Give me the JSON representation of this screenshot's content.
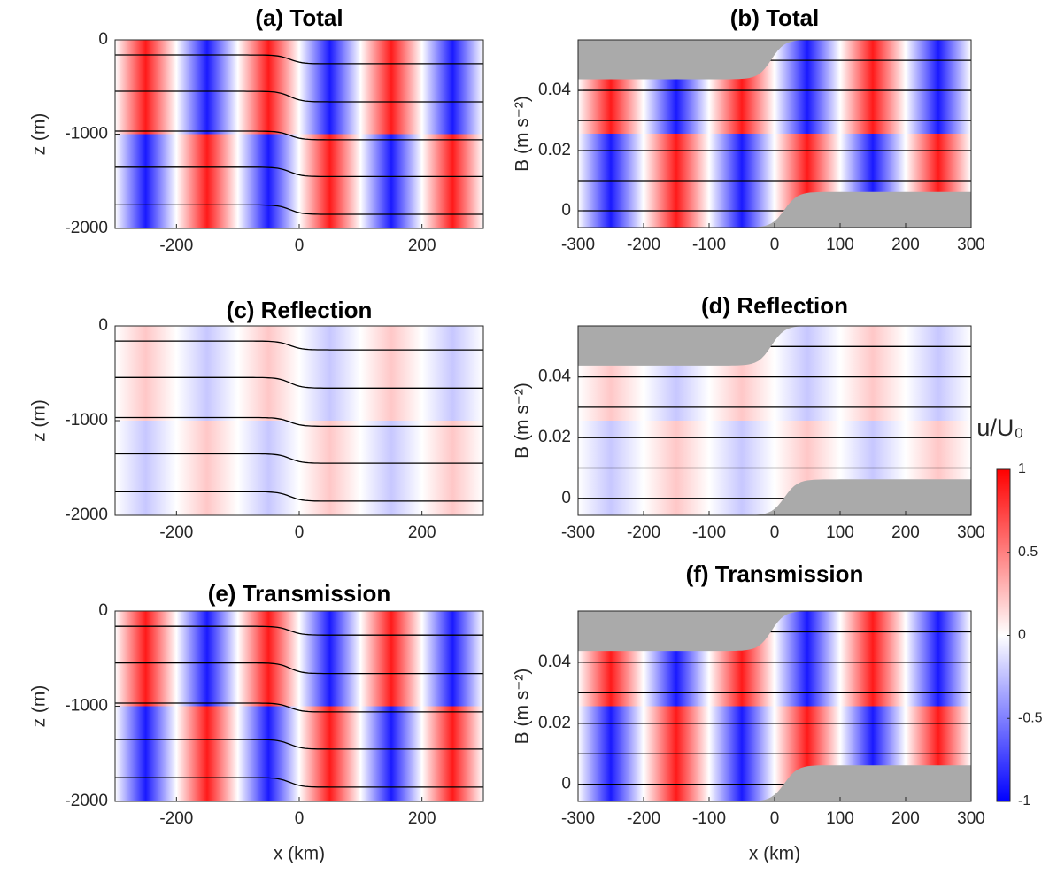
{
  "chart_data": [
    {
      "type": "contour",
      "title": "(a) Total",
      "ylabel": "z (m)",
      "xlim": [
        -300,
        300
      ],
      "xticks": [
        -200,
        0,
        200
      ],
      "ylim": [
        -2000,
        0
      ],
      "yticks": [
        -2000,
        -1000,
        0
      ],
      "contours": [
        [
          -160,
          -253
        ],
        [
          -545,
          -657
        ],
        [
          -967,
          -1060
        ],
        [
          -1350,
          -1450
        ],
        [
          -1750,
          -1850
        ]
      ]
    },
    {
      "type": "contour",
      "title": "(b) Total",
      "ylabel": "B (m s⁻²)",
      "xlim": [
        -300,
        300
      ],
      "xticks": [
        -300,
        -200,
        -100,
        0,
        100,
        200,
        300
      ],
      "ylim": [
        -0.0056,
        0.0568
      ],
      "yticks": [
        0,
        0.02,
        0.04
      ],
      "contours": [
        0,
        0.01,
        0.02,
        0.03,
        0.04,
        0.05
      ]
    },
    {
      "type": "contour",
      "title": "(c) Reflection",
      "ylabel": "z (m)",
      "xlim": [
        -300,
        300
      ],
      "xticks": [
        -200,
        0,
        200
      ],
      "ylim": [
        -2000,
        0
      ],
      "yticks": [
        -2000,
        -1000,
        0
      ],
      "contours": [
        [
          -160,
          -253
        ],
        [
          -545,
          -657
        ],
        [
          -967,
          -1060
        ],
        [
          -1350,
          -1450
        ],
        [
          -1750,
          -1850
        ]
      ]
    },
    {
      "type": "contour",
      "title": "(d) Reflection",
      "ylabel": "B (m s⁻²)",
      "xlim": [
        -300,
        300
      ],
      "xticks": [
        -300,
        -200,
        -100,
        0,
        100,
        200,
        300
      ],
      "ylim": [
        -0.0056,
        0.0568
      ],
      "yticks": [
        0,
        0.02,
        0.04
      ],
      "contours": [
        0,
        0.01,
        0.02,
        0.03,
        0.04,
        0.05
      ]
    },
    {
      "type": "contour",
      "title": "(e) Transmission",
      "ylabel": "z (m)",
      "xlabel": "x (km)",
      "xlim": [
        -300,
        300
      ],
      "xticks": [
        -200,
        0,
        200
      ],
      "ylim": [
        -2000,
        0
      ],
      "yticks": [
        -2000,
        -1000,
        0
      ],
      "contours": [
        [
          -160,
          -253
        ],
        [
          -545,
          -657
        ],
        [
          -967,
          -1060
        ],
        [
          -1350,
          -1450
        ],
        [
          -1750,
          -1850
        ]
      ]
    },
    {
      "type": "contour",
      "title": "(f) Transmission",
      "ylabel": "B (m s⁻²)",
      "xlabel": "x (km)",
      "xlim": [
        -300,
        300
      ],
      "xticks": [
        -300,
        -200,
        -100,
        0,
        100,
        200,
        300
      ],
      "ylim": [
        -0.0056,
        0.0568
      ],
      "yticks": [
        0,
        0.02,
        0.04
      ],
      "contours": [
        0,
        0.01,
        0.02,
        0.03,
        0.04,
        0.05
      ]
    }
  ],
  "colorbar": {
    "label": "u/U₀",
    "clim": [
      -1,
      1
    ],
    "ticks": [
      -1,
      -0.5,
      0,
      0.5,
      1
    ],
    "colors": [
      "#0000ff",
      "#ffffff",
      "#ff0000"
    ]
  }
}
